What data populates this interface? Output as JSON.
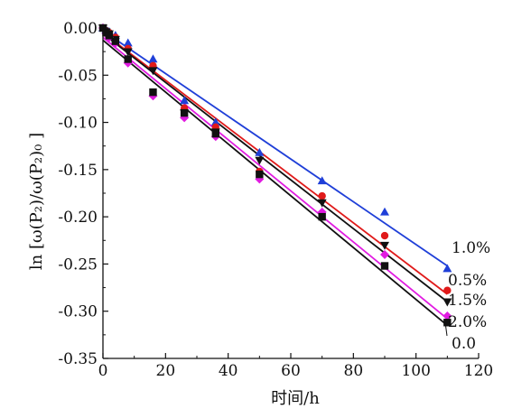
{
  "chart_data": {
    "type": "scatter",
    "title": "",
    "xlabel": "时间/h",
    "ylabel": "ln [ω(P₂)/ω(P₂)₀ ]",
    "xlim": [
      0,
      120
    ],
    "ylim": [
      -0.35,
      0.0
    ],
    "xticks": [
      0,
      20,
      40,
      60,
      80,
      100,
      120
    ],
    "yticks": [
      0.0,
      -0.05,
      -0.1,
      -0.15,
      -0.2,
      -0.25,
      -0.3,
      -0.35
    ],
    "xtick_labels": [
      "0",
      "20",
      "40",
      "60",
      "80",
      "100",
      "120"
    ],
    "ytick_labels": [
      "0.00",
      "-0.05",
      "-0.10",
      "-0.15",
      "-0.20",
      "-0.25",
      "-0.30",
      "-0.35"
    ],
    "grid": false,
    "legend": "inline labels at line ends (right)",
    "series": [
      {
        "name": "1.0%",
        "color": "#1f3fd8",
        "marker": "triangle-up",
        "x": [
          0,
          1,
          2,
          4,
          8,
          16,
          26,
          36,
          50,
          70,
          90,
          110
        ],
        "y": [
          0.0,
          -0.002,
          -0.004,
          -0.008,
          -0.016,
          -0.033,
          -0.077,
          -0.1,
          -0.132,
          -0.162,
          -0.195,
          -0.255
        ],
        "fit": [
          [
            0,
            -0.003
          ],
          [
            110,
            -0.252
          ]
        ]
      },
      {
        "name": "0.5%",
        "color": "#e01a1a",
        "marker": "circle",
        "x": [
          0,
          1,
          2,
          4,
          8,
          16,
          26,
          36,
          50,
          70,
          90,
          110
        ],
        "y": [
          0.0,
          -0.003,
          -0.005,
          -0.01,
          -0.022,
          -0.04,
          -0.085,
          -0.105,
          -0.152,
          -0.178,
          -0.22,
          -0.278
        ],
        "fit": [
          [
            0,
            -0.005
          ],
          [
            110,
            -0.282
          ]
        ]
      },
      {
        "name": "1.5%",
        "color": "#111111",
        "marker": "triangle-down",
        "x": [
          0,
          1,
          2,
          4,
          8,
          16,
          26,
          36,
          50,
          70,
          90,
          110
        ],
        "y": [
          0.0,
          -0.004,
          -0.006,
          -0.012,
          -0.025,
          -0.045,
          -0.09,
          -0.11,
          -0.14,
          -0.185,
          -0.23,
          -0.29
        ],
        "fit": [
          [
            0,
            -0.006
          ],
          [
            110,
            -0.29
          ]
        ]
      },
      {
        "name": "2.0%",
        "color": "#e11be1",
        "marker": "diamond",
        "x": [
          0,
          1,
          2,
          4,
          8,
          16,
          26,
          36,
          50,
          70,
          90,
          110
        ],
        "y": [
          0.0,
          -0.006,
          -0.01,
          -0.016,
          -0.037,
          -0.072,
          -0.095,
          -0.115,
          -0.16,
          -0.195,
          -0.24,
          -0.305
        ],
        "fit": [
          [
            0,
            -0.01
          ],
          [
            110,
            -0.308
          ]
        ]
      },
      {
        "name": "0.0",
        "color": "#111111",
        "marker": "square",
        "x": [
          0,
          1,
          2,
          4,
          8,
          16,
          26,
          36,
          50,
          70,
          90,
          110
        ],
        "y": [
          0.0,
          -0.005,
          -0.008,
          -0.014,
          -0.033,
          -0.068,
          -0.09,
          -0.112,
          -0.155,
          -0.2,
          -0.252,
          -0.312
        ],
        "fit": [
          [
            0,
            -0.013
          ],
          [
            110,
            -0.315
          ]
        ]
      }
    ]
  }
}
